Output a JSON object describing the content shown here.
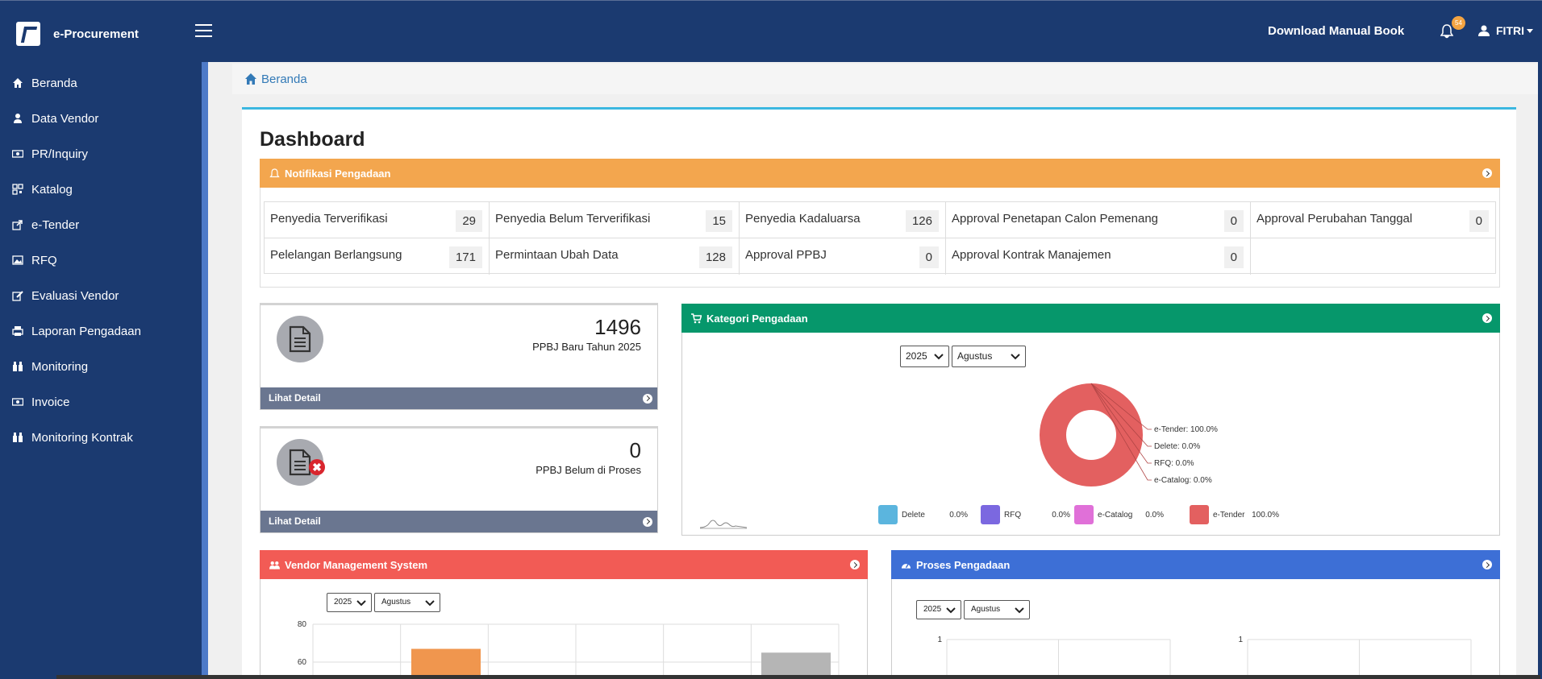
{
  "app": {
    "title": "e-Procurement"
  },
  "topbar": {
    "manual_link": "Download Manual Book",
    "notif_count": "54",
    "user_name": "FITRI"
  },
  "sidebar": {
    "items": [
      {
        "label": "Beranda",
        "icon": "home-icon"
      },
      {
        "label": "Data Vendor",
        "icon": "user-icon"
      },
      {
        "label": "PR/Inquiry",
        "icon": "money-icon"
      },
      {
        "label": "Katalog",
        "icon": "qrcode-icon"
      },
      {
        "label": "e-Tender",
        "icon": "share-square-icon"
      },
      {
        "label": "RFQ",
        "icon": "image-icon"
      },
      {
        "label": "Evaluasi Vendor",
        "icon": "edit-icon"
      },
      {
        "label": "Laporan Pengadaan",
        "icon": "print-icon"
      },
      {
        "label": "Monitoring",
        "icon": "binoculars-icon"
      },
      {
        "label": "Invoice",
        "icon": "money-icon"
      },
      {
        "label": "Monitoring Kontrak",
        "icon": "binoculars-icon"
      }
    ]
  },
  "breadcrumb": {
    "home": "Beranda"
  },
  "dashboard": {
    "title": "Dashboard",
    "notif_panel": {
      "title": "Notifikasi Pengadaan",
      "cells": [
        {
          "label": "Penyedia Terverifikasi",
          "count": "29"
        },
        {
          "label": "Penyedia Belum Terverifikasi",
          "count": "15"
        },
        {
          "label": "Penyedia Kadaluarsa",
          "count": "126"
        },
        {
          "label": "Approval Penetapan Calon Pemenang",
          "count": "0"
        },
        {
          "label": "Approval Perubahan Tanggal",
          "count": "0"
        },
        {
          "label": "Pelelangan Berlangsung",
          "count": "171"
        },
        {
          "label": "Permintaan Ubah Data",
          "count": "128"
        },
        {
          "label": "Approval PPBJ",
          "count": "0"
        },
        {
          "label": "Approval Kontrak Manajemen",
          "count": "0"
        }
      ]
    },
    "stats": [
      {
        "value": "1496",
        "caption": "PPBJ Baru Tahun 2025",
        "link": "Lihat Detail"
      },
      {
        "value": "0",
        "caption": "PPBJ Belum di Proses",
        "link": "Lihat Detail"
      }
    ],
    "kategori": {
      "title": "Kategori Pengadaan",
      "year": "2025",
      "month": "Agustus"
    },
    "vms": {
      "title": "Vendor Management System",
      "year": "2025",
      "month": "Agustus"
    },
    "proses": {
      "title": "Proses Pengadaan",
      "year": "2025",
      "month": "Agustus"
    }
  },
  "chart_data": [
    {
      "type": "pie",
      "title": "",
      "labels": [
        "Delete",
        "RFQ",
        "e-Catalog",
        "e-Tender"
      ],
      "values": [
        0.0,
        0.0,
        0.0,
        100.0
      ],
      "value_labels": [
        "0.0%",
        "0.0%",
        "0.0%",
        "100.0%"
      ],
      "callouts": [
        "e-Tender: 100.0%",
        "Delete: 0.0%",
        "RFQ: 0.0%",
        "e-Catalog: 0.0%"
      ],
      "colors": [
        "#5bb5de",
        "#7b68e0",
        "#e070d8",
        "#e36060"
      ],
      "legend": "bottom"
    },
    {
      "type": "bar",
      "title": "",
      "ylim": [
        40,
        80
      ],
      "yticks": [
        "80",
        "60"
      ],
      "bars_visible": [
        {
          "category_index": 1,
          "value": 67,
          "color": "#f0964e"
        },
        {
          "category_index": 6,
          "value": 65,
          "color": "#b5b5b5"
        }
      ],
      "grid": true
    },
    {
      "type": "bar",
      "title": "",
      "yticks": [
        "1"
      ],
      "subplots": 2,
      "grid": true
    }
  ]
}
